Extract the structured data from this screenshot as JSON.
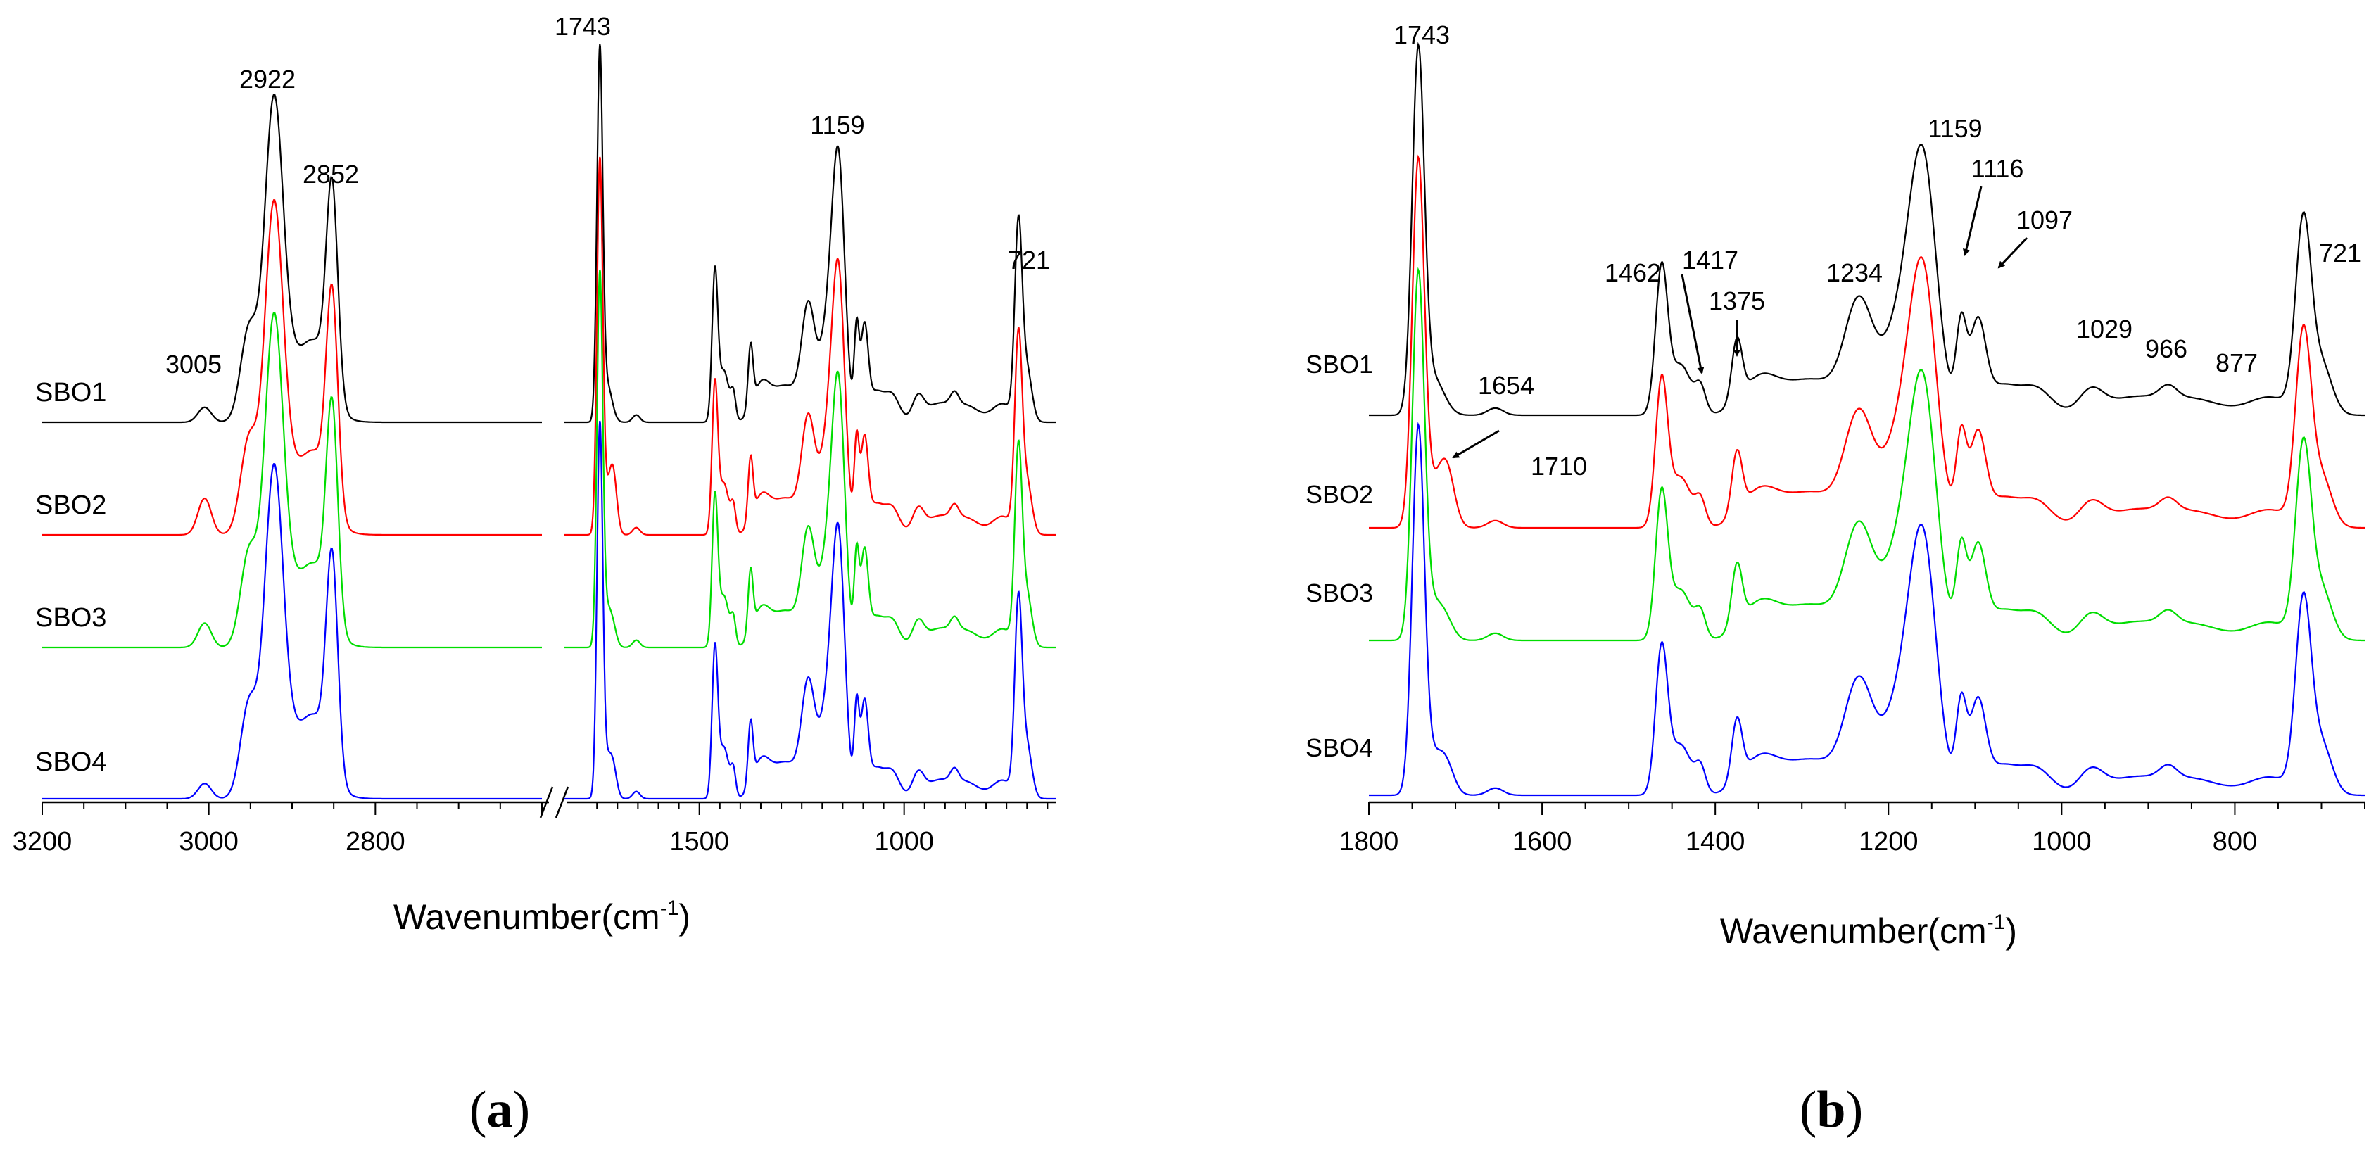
{
  "figure": {
    "caption_a": "a",
    "caption_b": "b",
    "colors": {
      "SBO1": "#000000",
      "SBO2": "#ff0000",
      "SBO3": "#00dd00",
      "SBO4": "#0000ff"
    }
  },
  "chart_data": [
    {
      "type": "line",
      "panel": "a",
      "title": "",
      "xlabel": "Wavenumber(cm-1)",
      "ylabel": "",
      "xaxis_break": true,
      "x_segments": [
        {
          "xlim": [
            3200,
            2600
          ],
          "ticks": [
            3200,
            3000,
            2800
          ]
        },
        {
          "xlim": [
            1850,
            630
          ],
          "ticks": [
            1500,
            1000
          ]
        }
      ],
      "series": [
        {
          "name": "SBO1",
          "color": "#000000"
        },
        {
          "name": "SBO2",
          "color": "#ff0000"
        },
        {
          "name": "SBO3",
          "color": "#00dd00"
        },
        {
          "name": "SBO4",
          "color": "#0000ff"
        }
      ],
      "peak_labels": [
        {
          "text": "3005",
          "x": 3005
        },
        {
          "text": "2922",
          "x": 2922
        },
        {
          "text": "2852",
          "x": 2852
        },
        {
          "text": "1743",
          "x": 1743
        },
        {
          "text": "1159",
          "x": 1159
        },
        {
          "text": "721",
          "x": 721
        }
      ]
    },
    {
      "type": "line",
      "panel": "b",
      "title": "",
      "xlabel": "Wavenumber(cm-1)",
      "ylabel": "",
      "xlim": [
        1800,
        650
      ],
      "ticks": [
        1800,
        1600,
        1400,
        1200,
        1000,
        800
      ],
      "series": [
        {
          "name": "SBO1",
          "color": "#000000"
        },
        {
          "name": "SBO2",
          "color": "#ff0000"
        },
        {
          "name": "SBO3",
          "color": "#00dd00"
        },
        {
          "name": "SBO4",
          "color": "#0000ff"
        }
      ],
      "peak_labels": [
        {
          "text": "1743",
          "x": 1743
        },
        {
          "text": "1654",
          "x": 1654
        },
        {
          "text": "1710",
          "x": 1710
        },
        {
          "text": "1462",
          "x": 1462
        },
        {
          "text": "1417",
          "x": 1417
        },
        {
          "text": "1375",
          "x": 1375
        },
        {
          "text": "1234",
          "x": 1234
        },
        {
          "text": "1159",
          "x": 1159
        },
        {
          "text": "1116",
          "x": 1116
        },
        {
          "text": "1097",
          "x": 1097
        },
        {
          "text": "1029",
          "x": 1029
        },
        {
          "text": "966",
          "x": 966
        },
        {
          "text": "877",
          "x": 877
        },
        {
          "text": "721",
          "x": 721
        }
      ]
    }
  ]
}
